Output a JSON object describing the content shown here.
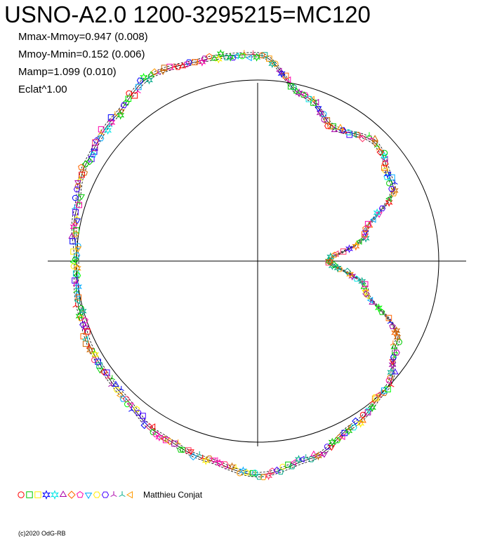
{
  "title": "USNO-A2.0 1200-3295215=MC120",
  "stats": [
    "Mmax-Mmoy=0.947 (0.008)",
    "Mmoy-Mmin=0.152 (0.006)",
    "Mamp=1.099 (0.010)",
    "Eclat^1.00"
  ],
  "observer": "Matthieu Conjat",
  "copyright": "(c)2020 OdG-RB",
  "chart_data": {
    "type": "scatter",
    "projection": "polar",
    "title": "USNO-A2.0 1200-3295215=MC120",
    "mmax_mmoy": 0.947,
    "mmoy_mmin": 0.152,
    "mamp": 1.099,
    "eclat_exponent": 1.0,
    "reference_circle_radius": 1.0,
    "grid": "cross-axes",
    "legend_placement": "bottom-left",
    "phase_deg": [
      0,
      15,
      30,
      45,
      60,
      75,
      90,
      105,
      120,
      135,
      150,
      165,
      180,
      195,
      210,
      225,
      240,
      255,
      270,
      285,
      300,
      315,
      330,
      345
    ],
    "radius": [
      0.39,
      0.62,
      0.86,
      0.92,
      0.85,
      0.95,
      1.14,
      1.15,
      1.18,
      1.12,
      1.09,
      1.04,
      1.0,
      1.02,
      1.04,
      1.05,
      1.1,
      1.13,
      1.18,
      1.13,
      1.05,
      1.0,
      0.89,
      0.62
    ],
    "marker_colors": [
      "#ff0000",
      "#00cc00",
      "#ffee00",
      "#0000ff",
      "#00e5e5",
      "#aa00aa",
      "#ff6600",
      "#00aa88",
      "#ff9900",
      "#00ff00",
      "#4400ff",
      "#ff00aa",
      "#00aaff",
      "#cc6600",
      "#ff3366"
    ],
    "marker_shapes": [
      "circle",
      "square",
      "square",
      "star",
      "star",
      "triangle",
      "pentagon",
      "diamond",
      "triangle-down",
      "hexagon",
      "pinwheel",
      "fan",
      "triangle-left"
    ]
  }
}
